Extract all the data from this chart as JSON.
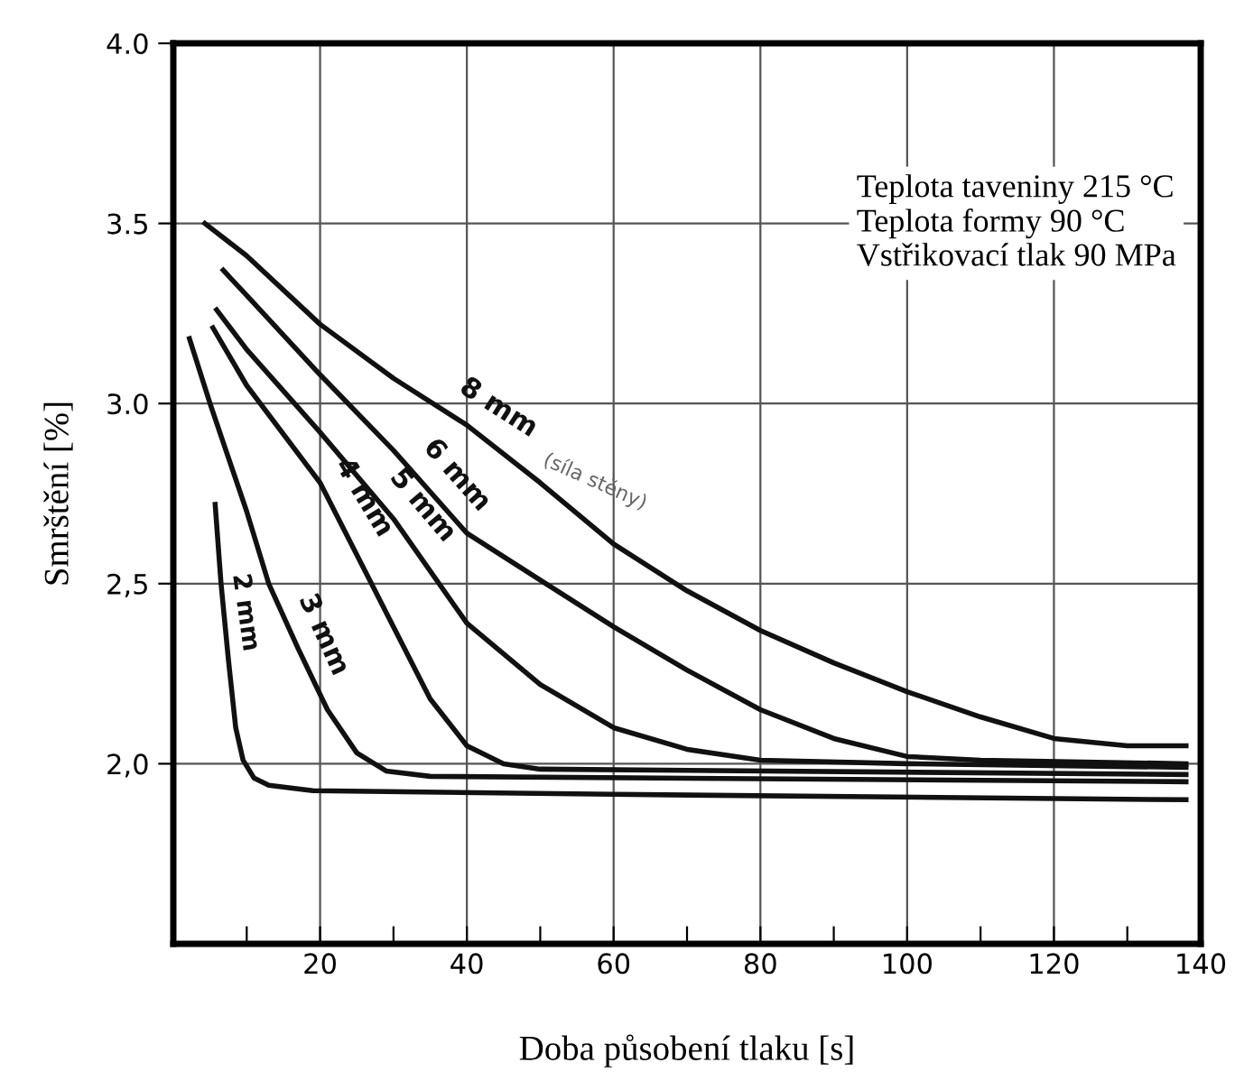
{
  "chart_data": {
    "type": "line",
    "xlabel": "Doba působení tlaku [s]",
    "ylabel": "Smrštění [%]",
    "xlim": [
      0,
      140
    ],
    "ylim": [
      1.5,
      4.0
    ],
    "xticks": [
      {
        "value": 10,
        "label": null
      },
      20,
      {
        "value": 30,
        "label": null
      },
      40,
      {
        "value": 50,
        "label": null
      },
      60,
      {
        "value": 70,
        "label": null
      },
      80,
      {
        "value": 90,
        "label": null
      },
      100,
      {
        "value": 110,
        "label": null
      },
      120,
      {
        "value": 130,
        "label": null
      },
      140
    ],
    "yticks": [
      {
        "value": 2.0,
        "label": "2,0"
      },
      {
        "value": 2.5,
        "label": "2,5"
      },
      {
        "value": 3.0,
        "label": "3.0"
      },
      {
        "value": 3.5,
        "label": "3.5"
      },
      {
        "value": 4.0,
        "label": "4.0"
      }
    ],
    "grid": true,
    "legend": false,
    "marker": "none",
    "line_style": "solid",
    "series": [
      {
        "name": "8 mm",
        "color": "#111111",
        "x": [
          4.3,
          10,
          20,
          30,
          40,
          50,
          60,
          70,
          80,
          90,
          100,
          110,
          120,
          130,
          138
        ],
        "values": [
          3.5,
          3.41,
          3.22,
          3.07,
          2.94,
          2.78,
          2.61,
          2.48,
          2.37,
          2.28,
          2.2,
          2.13,
          2.07,
          2.05,
          2.05
        ]
      },
      {
        "name": "6 mm",
        "color": "#111111",
        "x": [
          6.8,
          10,
          20,
          30,
          40,
          50,
          60,
          70,
          80,
          90,
          100,
          110,
          138
        ],
        "values": [
          3.37,
          3.3,
          3.08,
          2.87,
          2.64,
          2.51,
          2.38,
          2.26,
          2.15,
          2.07,
          2.02,
          2.01,
          2.0
        ]
      },
      {
        "name": "5 mm",
        "color": "#111111",
        "x": [
          5.9,
          10,
          20,
          30,
          40,
          50,
          60,
          70,
          80,
          100,
          138
        ],
        "values": [
          3.26,
          3.15,
          2.92,
          2.68,
          2.39,
          2.22,
          2.1,
          2.04,
          2.01,
          2.0,
          1.99
        ]
      },
      {
        "name": "4 mm",
        "color": "#111111",
        "x": [
          5.4,
          10,
          20,
          27,
          30,
          35,
          40,
          45,
          50,
          138
        ],
        "values": [
          3.21,
          3.05,
          2.78,
          2.5,
          2.38,
          2.18,
          2.05,
          2.0,
          1.985,
          1.97
        ]
      },
      {
        "name": "3 mm",
        "color": "#111111",
        "x": [
          2.2,
          5,
          10,
          13,
          17,
          21,
          25,
          29,
          35,
          138
        ],
        "values": [
          3.18,
          3.0,
          2.7,
          2.5,
          2.32,
          2.15,
          2.03,
          1.98,
          1.965,
          1.95
        ]
      },
      {
        "name": "2 mm",
        "color": "#111111",
        "x": [
          5.7,
          6.5,
          7.5,
          8.5,
          9.5,
          11,
          13,
          19,
          60,
          138
        ],
        "values": [
          2.72,
          2.5,
          2.29,
          2.1,
          2.01,
          1.96,
          1.94,
          1.925,
          1.915,
          1.9
        ]
      }
    ],
    "annotations": [
      "Teplota taveniny 215 °C",
      "Teplota formy 90 °C",
      "Vstřikovací tlak 90 MPa",
      {
        "text": "(síla stěny)",
        "x": 50,
        "y": 2.82
      }
    ]
  }
}
